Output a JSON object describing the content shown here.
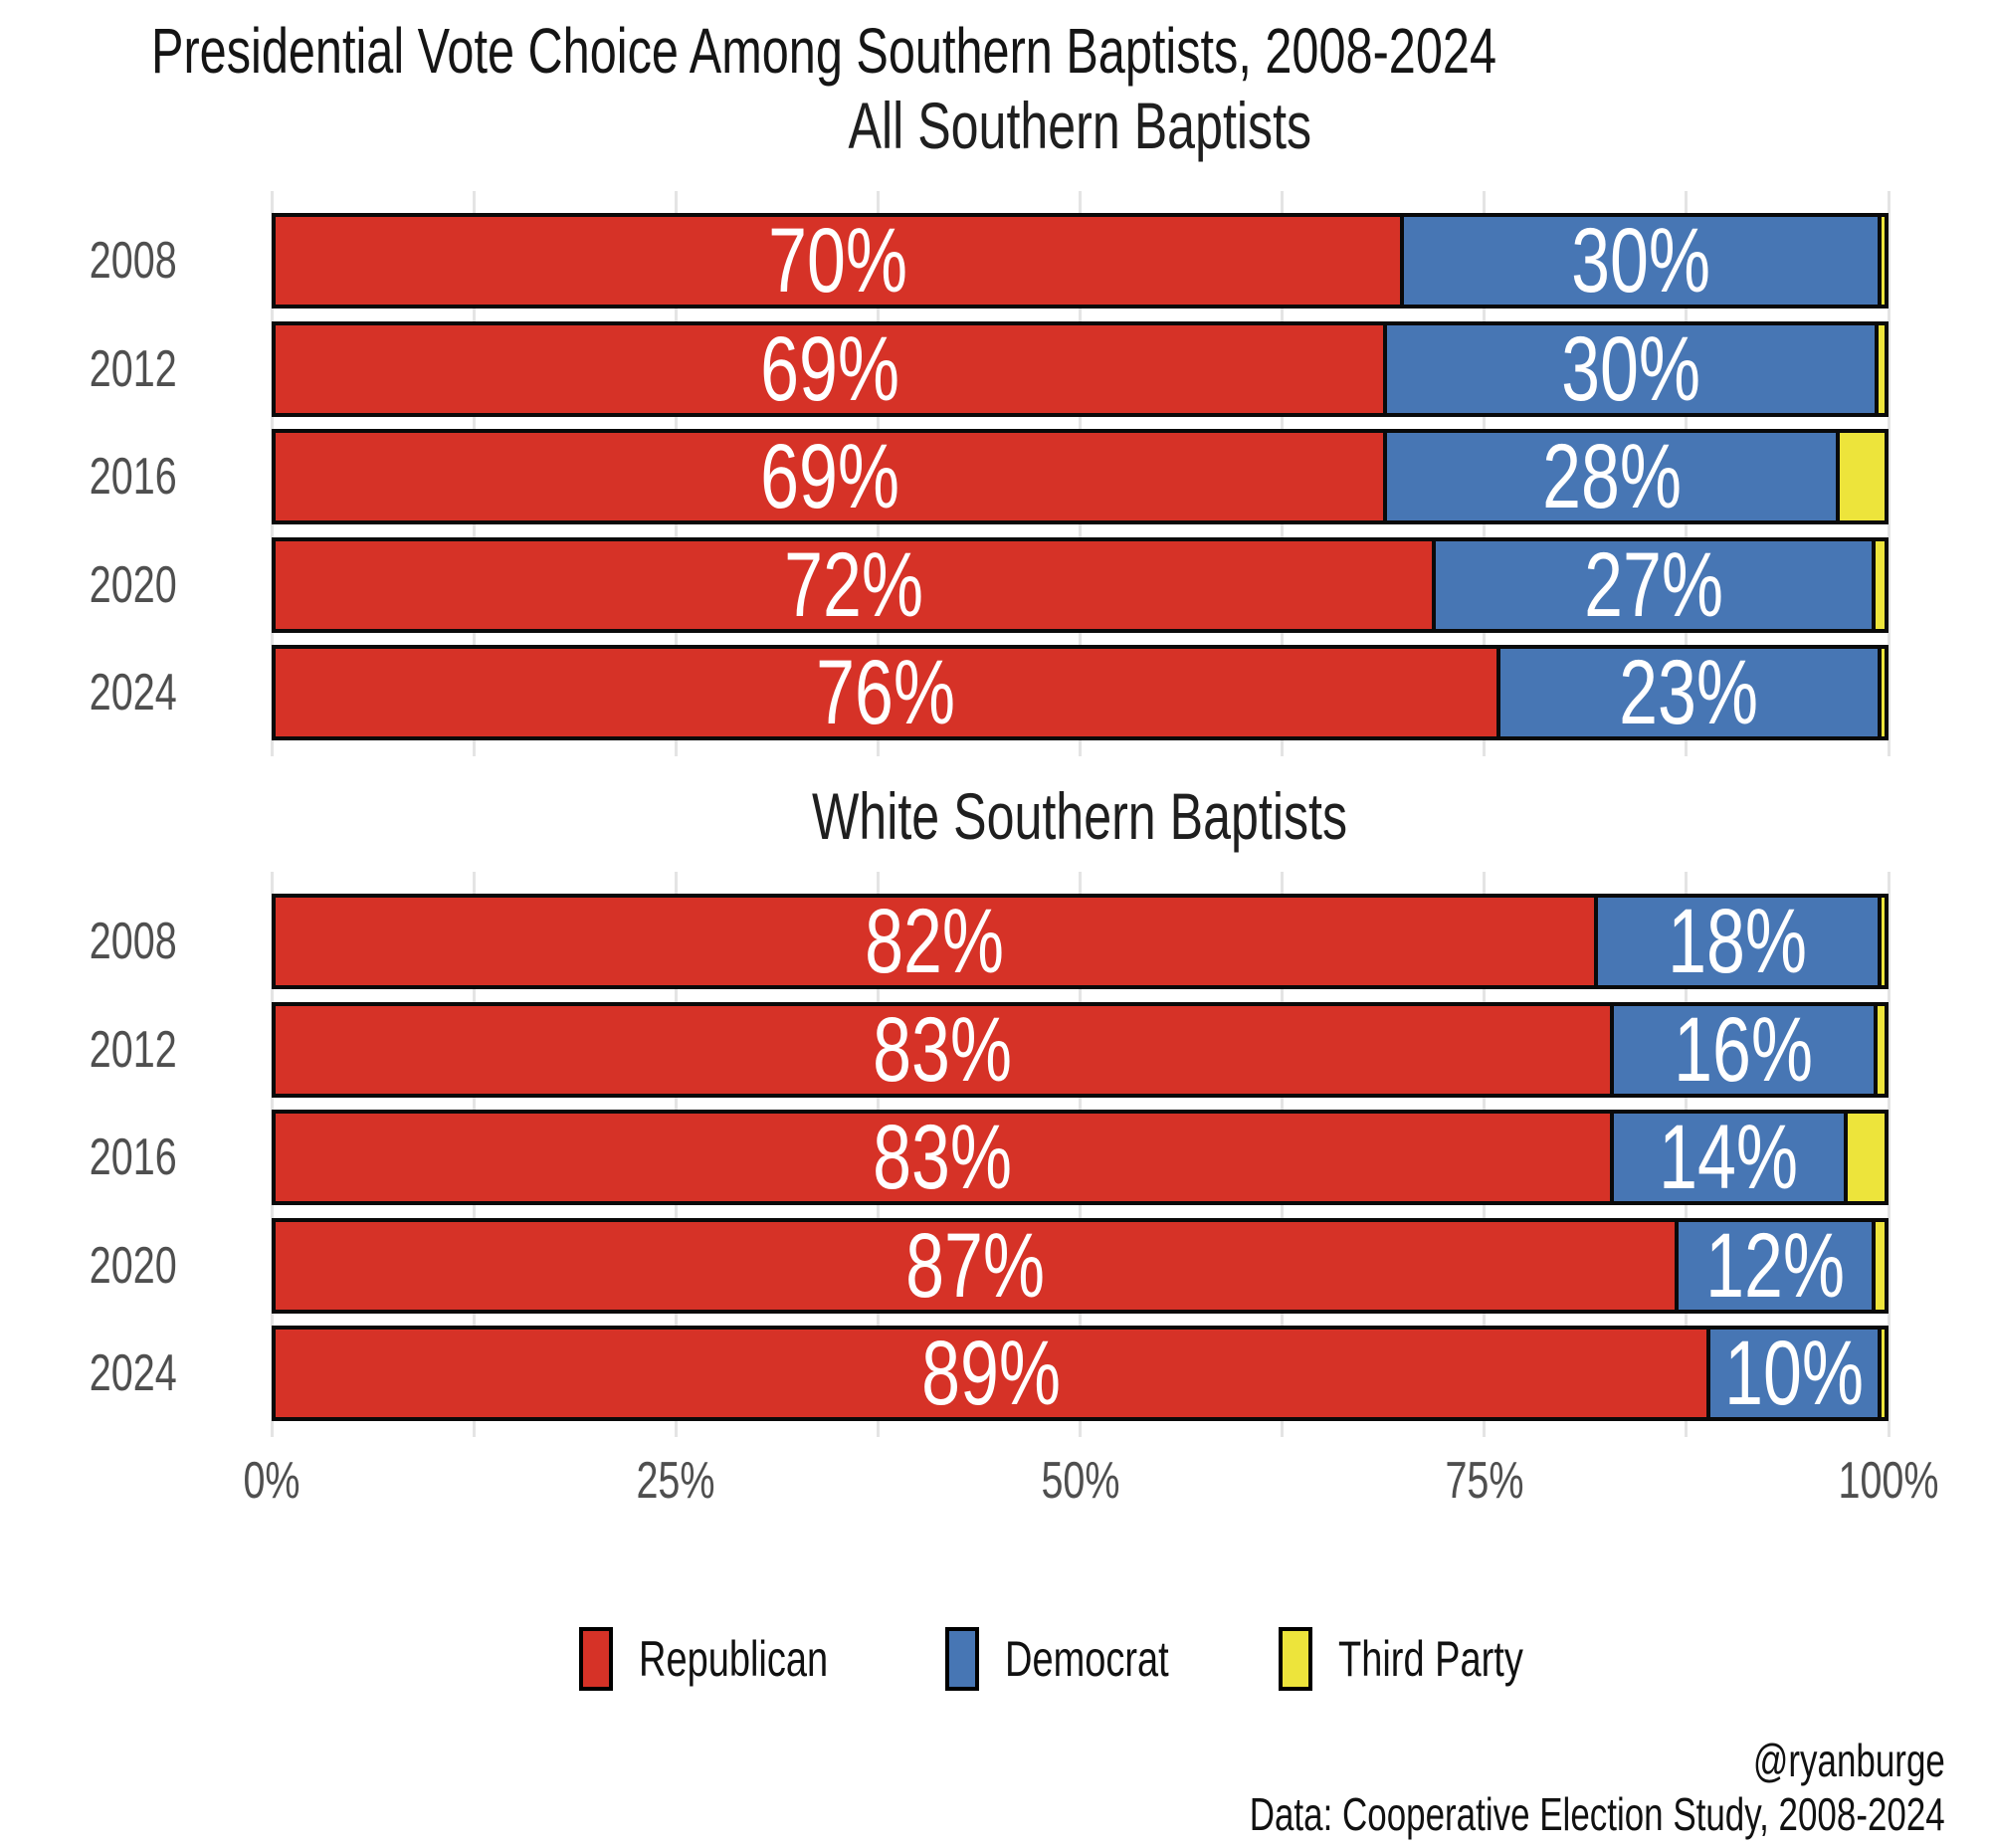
{
  "title": "Presidential Vote Choice Among Southern Baptists, 2008-2024",
  "colors": {
    "republican": "#d63227",
    "democrat": "#4776b4",
    "third_party": "#ede43b",
    "bar_border": "#0a0a0a",
    "bar_label_text": "#ffffff",
    "axis_text": "#4f4f4f",
    "gridline": "#e4e4e4",
    "background": "#ffffff"
  },
  "x_axis": {
    "tick_labels": [
      "0%",
      "25%",
      "50%",
      "75%",
      "100%"
    ],
    "tick_positions": [
      0,
      25,
      50,
      75,
      100
    ],
    "minor_gridline_step": 12.5,
    "range": [
      0,
      100
    ]
  },
  "legend": [
    {
      "key": "republican",
      "label": "Republican"
    },
    {
      "key": "democrat",
      "label": "Democrat"
    },
    {
      "key": "third_party",
      "label": "Third Party"
    }
  ],
  "footer": {
    "handle": "@ryanburge",
    "source": "Data: Cooperative Election Study, 2008-2024"
  },
  "chart_data": [
    {
      "type": "bar",
      "orientation": "horizontal",
      "stacked": true,
      "title": "All Southern Baptists",
      "categories": [
        "2008",
        "2012",
        "2016",
        "2020",
        "2024"
      ],
      "series": [
        {
          "name": "Republican",
          "values": [
            70,
            69,
            69,
            72,
            76
          ]
        },
        {
          "name": "Democrat",
          "values": [
            30,
            30,
            28,
            27,
            23
          ]
        },
        {
          "name": "Third Party",
          "values": [
            0.4,
            0.6,
            3,
            0.8,
            0.4
          ]
        }
      ],
      "labels": {
        "republican": [
          "70%",
          "69%",
          "69%",
          "72%",
          "76%"
        ],
        "democrat": [
          "30%",
          "30%",
          "28%",
          "27%",
          "23%"
        ],
        "third_party": [
          "",
          "",
          "",
          "",
          ""
        ]
      },
      "xlim": [
        0,
        100
      ],
      "grid": true,
      "legend_position": "bottom"
    },
    {
      "type": "bar",
      "orientation": "horizontal",
      "stacked": true,
      "title": "White Southern Baptists",
      "categories": [
        "2008",
        "2012",
        "2016",
        "2020",
        "2024"
      ],
      "series": [
        {
          "name": "Republican",
          "values": [
            82,
            83,
            83,
            87,
            89
          ]
        },
        {
          "name": "Democrat",
          "values": [
            18,
            16,
            14,
            12,
            10
          ]
        },
        {
          "name": "Third Party",
          "values": [
            0.4,
            0.7,
            2.5,
            0.8,
            0.4
          ]
        }
      ],
      "labels": {
        "republican": [
          "82%",
          "83%",
          "83%",
          "87%",
          "89%"
        ],
        "democrat": [
          "18%",
          "16%",
          "14%",
          "12%",
          "10%"
        ],
        "third_party": [
          "",
          "",
          "",
          "",
          ""
        ]
      },
      "xlim": [
        0,
        100
      ],
      "grid": true,
      "legend_position": "bottom"
    }
  ]
}
